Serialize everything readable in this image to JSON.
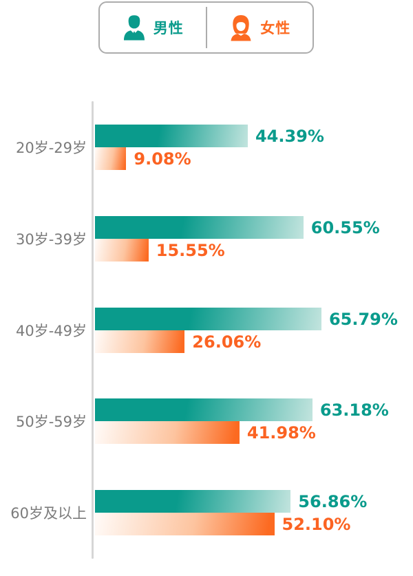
{
  "colors": {
    "male_teal": "#0A9B8C",
    "male_fade": "#C2E4DE",
    "female_orange": "#FC6A21",
    "female_fade_start": "#FFF9F5",
    "female_value_text": "#FB6322",
    "category_label_gray": "#7B7B7B",
    "axis_gray": "#D6D6D6",
    "legend_border_gray": "#ACACAC"
  },
  "legend": {
    "male": {
      "label": "男性",
      "icon": "male-person-icon"
    },
    "female": {
      "label": "女性",
      "icon": "female-person-icon"
    }
  },
  "chart_data": {
    "type": "bar",
    "orientation": "horizontal",
    "title": "",
    "xlabel": "",
    "ylabel": "",
    "value_unit": "%",
    "xlim": [
      0,
      100
    ],
    "grid": false,
    "legend_position": "top",
    "categories": [
      "20岁-29岁",
      "30岁-39岁",
      "40岁-49岁",
      "50岁-59岁",
      "60岁及以上"
    ],
    "series": [
      {
        "name": "男性",
        "color": "#0A9B8C",
        "values": [
          44.39,
          60.55,
          65.79,
          63.18,
          56.86
        ],
        "labels": [
          "44.39%",
          "60.55%",
          "65.79%",
          "63.18%",
          "56.86%"
        ]
      },
      {
        "name": "女性",
        "color": "#FC6A21",
        "values": [
          9.08,
          15.55,
          26.06,
          41.98,
          52.1
        ],
        "labels": [
          "9.08%",
          "15.55%",
          "26.06%",
          "41.98%",
          "52.10%"
        ]
      }
    ]
  }
}
